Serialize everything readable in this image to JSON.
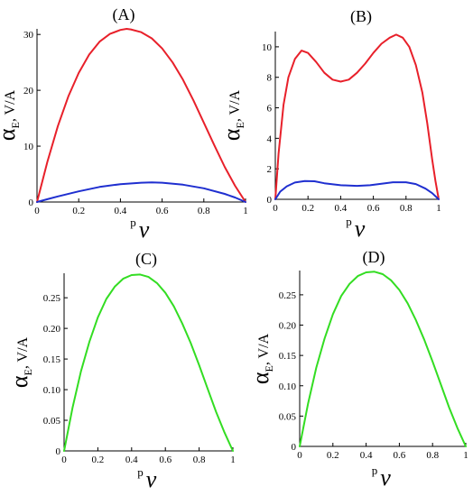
{
  "chart_data": [
    {
      "panel_label": "(A)",
      "type": "line",
      "xlabel_main": "v",
      "xlabel_sup": "p",
      "ylabel_main": "α",
      "ylabel_sub": "E",
      "ylabel_unit": ", V/A",
      "xlim": [
        0,
        1
      ],
      "ylim": [
        0,
        31
      ],
      "x_ticks": [
        "0",
        "0.2",
        "0.4",
        "0.6",
        "0.8",
        "1"
      ],
      "y_ticks": [
        "0",
        "10",
        "20",
        "30"
      ],
      "series": [
        {
          "color": "#e8202a",
          "points": [
            [
              0,
              0
            ],
            [
              0.05,
              7.2
            ],
            [
              0.1,
              13.6
            ],
            [
              0.15,
              18.9
            ],
            [
              0.2,
              23.1
            ],
            [
              0.25,
              26.4
            ],
            [
              0.3,
              28.7
            ],
            [
              0.35,
              30.1
            ],
            [
              0.4,
              30.8
            ],
            [
              0.43,
              31.0
            ],
            [
              0.45,
              30.9
            ],
            [
              0.5,
              30.4
            ],
            [
              0.55,
              29.3
            ],
            [
              0.6,
              27.5
            ],
            [
              0.65,
              25.0
            ],
            [
              0.7,
              21.9
            ],
            [
              0.75,
              18.2
            ],
            [
              0.8,
              14.2
            ],
            [
              0.85,
              10.2
            ],
            [
              0.9,
              6.3
            ],
            [
              0.95,
              2.9
            ],
            [
              1,
              0
            ]
          ]
        },
        {
          "color": "#1f2fd0",
          "points": [
            [
              0,
              0
            ],
            [
              0.05,
              0.5
            ],
            [
              0.1,
              1.0
            ],
            [
              0.2,
              1.9
            ],
            [
              0.3,
              2.7
            ],
            [
              0.4,
              3.2
            ],
            [
              0.5,
              3.45
            ],
            [
              0.55,
              3.5
            ],
            [
              0.6,
              3.45
            ],
            [
              0.7,
              3.1
            ],
            [
              0.8,
              2.45
            ],
            [
              0.9,
              1.45
            ],
            [
              0.95,
              0.8
            ],
            [
              1,
              0
            ]
          ]
        }
      ]
    },
    {
      "panel_label": "(B)",
      "type": "line",
      "xlabel_main": "v",
      "xlabel_sup": "p",
      "ylabel_main": "α",
      "ylabel_sub": "E",
      "ylabel_unit": ", V/A",
      "xlim": [
        0,
        1
      ],
      "ylim": [
        0,
        11
      ],
      "x_ticks": [
        "0",
        "0.2",
        "0.4",
        "0.6",
        "0.8",
        "1"
      ],
      "y_ticks": [
        "0",
        "2",
        "4",
        "6",
        "8",
        "10"
      ],
      "series": [
        {
          "color": "#e8202a",
          "points": [
            [
              0,
              0
            ],
            [
              0.02,
              3.0
            ],
            [
              0.05,
              6.2
            ],
            [
              0.08,
              8.0
            ],
            [
              0.12,
              9.2
            ],
            [
              0.16,
              9.75
            ],
            [
              0.2,
              9.6
            ],
            [
              0.25,
              9.0
            ],
            [
              0.3,
              8.3
            ],
            [
              0.35,
              7.85
            ],
            [
              0.4,
              7.72
            ],
            [
              0.45,
              7.85
            ],
            [
              0.5,
              8.3
            ],
            [
              0.55,
              8.9
            ],
            [
              0.6,
              9.6
            ],
            [
              0.65,
              10.2
            ],
            [
              0.7,
              10.6
            ],
            [
              0.74,
              10.8
            ],
            [
              0.78,
              10.6
            ],
            [
              0.82,
              10.0
            ],
            [
              0.86,
              8.8
            ],
            [
              0.9,
              7.0
            ],
            [
              0.93,
              5.0
            ],
            [
              0.96,
              2.6
            ],
            [
              0.98,
              1.2
            ],
            [
              1,
              0
            ]
          ]
        },
        {
          "color": "#1f2fd0",
          "points": [
            [
              0,
              0
            ],
            [
              0.03,
              0.5
            ],
            [
              0.07,
              0.85
            ],
            [
              0.12,
              1.1
            ],
            [
              0.18,
              1.2
            ],
            [
              0.24,
              1.18
            ],
            [
              0.3,
              1.05
            ],
            [
              0.4,
              0.92
            ],
            [
              0.5,
              0.88
            ],
            [
              0.58,
              0.92
            ],
            [
              0.65,
              1.02
            ],
            [
              0.72,
              1.12
            ],
            [
              0.8,
              1.12
            ],
            [
              0.86,
              1.0
            ],
            [
              0.92,
              0.7
            ],
            [
              0.96,
              0.4
            ],
            [
              1,
              0
            ]
          ]
        }
      ]
    },
    {
      "panel_label": "(C)",
      "type": "line",
      "xlabel_main": "v",
      "xlabel_sup": "p",
      "ylabel_main": "α",
      "ylabel_sub": "E",
      "ylabel_unit": ", V/A",
      "xlim": [
        0,
        1
      ],
      "ylim": [
        0,
        0.29
      ],
      "x_ticks": [
        "0",
        "0.2",
        "0.4",
        "0.6",
        "0.8",
        "1"
      ],
      "y_ticks": [
        "0",
        "0.05",
        "0.10",
        "0.15",
        "0.20",
        "0.25"
      ],
      "series": [
        {
          "color": "#33dd22",
          "points": [
            [
              0,
              0
            ],
            [
              0.05,
              0.07
            ],
            [
              0.1,
              0.13
            ],
            [
              0.15,
              0.178
            ],
            [
              0.2,
              0.218
            ],
            [
              0.25,
              0.248
            ],
            [
              0.3,
              0.268
            ],
            [
              0.35,
              0.281
            ],
            [
              0.4,
              0.287
            ],
            [
              0.45,
              0.288
            ],
            [
              0.5,
              0.284
            ],
            [
              0.55,
              0.274
            ],
            [
              0.6,
              0.258
            ],
            [
              0.65,
              0.236
            ],
            [
              0.7,
              0.208
            ],
            [
              0.75,
              0.176
            ],
            [
              0.8,
              0.14
            ],
            [
              0.85,
              0.102
            ],
            [
              0.9,
              0.064
            ],
            [
              0.95,
              0.03
            ],
            [
              1,
              0
            ]
          ]
        }
      ]
    },
    {
      "panel_label": "(D)",
      "type": "line",
      "xlabel_main": "v",
      "xlabel_sup": "p",
      "ylabel_main": "α",
      "ylabel_sub": "E",
      "ylabel_unit": ", V/A",
      "xlim": [
        0,
        1
      ],
      "ylim": [
        0,
        0.29
      ],
      "x_ticks": [
        "0",
        "0.2",
        "0.4",
        "0.6",
        "0.8",
        "1"
      ],
      "y_ticks": [
        "0",
        "0.05",
        "0.10",
        "0.15",
        "0.20",
        "0.25"
      ],
      "series": [
        {
          "color": "#33dd22",
          "points": [
            [
              0,
              0
            ],
            [
              0.05,
              0.07
            ],
            [
              0.1,
              0.13
            ],
            [
              0.15,
              0.178
            ],
            [
              0.2,
              0.218
            ],
            [
              0.25,
              0.248
            ],
            [
              0.3,
              0.268
            ],
            [
              0.35,
              0.281
            ],
            [
              0.4,
              0.287
            ],
            [
              0.45,
              0.288
            ],
            [
              0.5,
              0.284
            ],
            [
              0.55,
              0.274
            ],
            [
              0.6,
              0.258
            ],
            [
              0.65,
              0.236
            ],
            [
              0.7,
              0.208
            ],
            [
              0.75,
              0.176
            ],
            [
              0.8,
              0.14
            ],
            [
              0.85,
              0.102
            ],
            [
              0.9,
              0.064
            ],
            [
              0.95,
              0.03
            ],
            [
              1,
              0
            ]
          ]
        }
      ]
    }
  ]
}
